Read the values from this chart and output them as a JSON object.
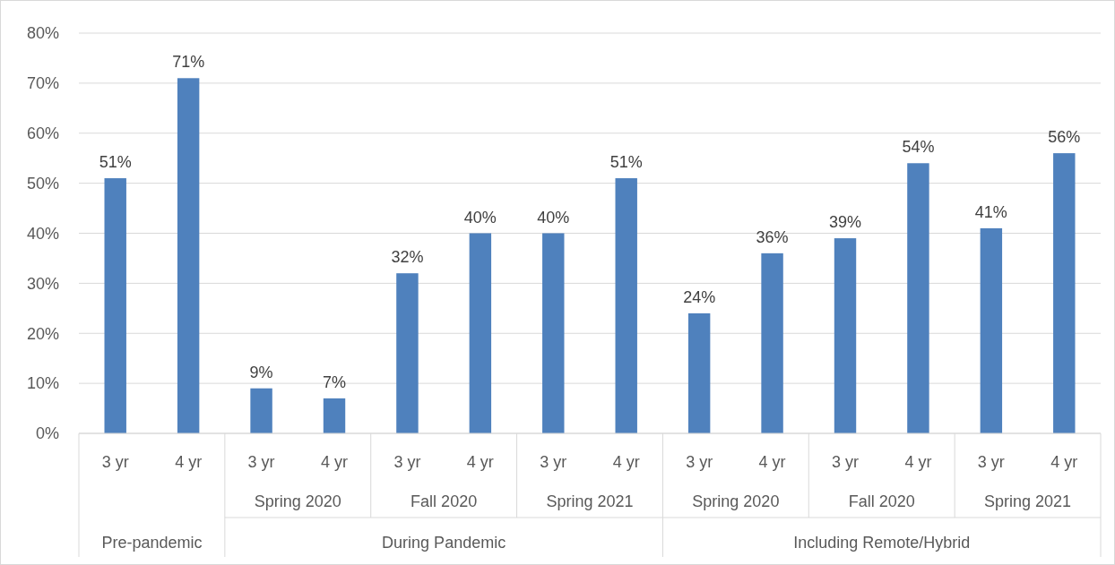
{
  "chart_data": {
    "type": "bar",
    "categories": [
      "3 yr",
      "4 yr",
      "3 yr",
      "4 yr",
      "3 yr",
      "4 yr",
      "3 yr",
      "4 yr",
      "3 yr",
      "4 yr",
      "3 yr",
      "4 yr",
      "3 yr",
      "4 yr"
    ],
    "values": [
      51,
      71,
      9,
      7,
      32,
      40,
      40,
      51,
      24,
      36,
      39,
      54,
      41,
      56
    ],
    "color": "#4f81bd",
    "ylim": [
      0,
      80
    ],
    "yticks": [
      {
        "value": 0,
        "label": "0%"
      },
      {
        "value": 10,
        "label": "10%"
      },
      {
        "value": 20,
        "label": "20%"
      },
      {
        "value": 30,
        "label": "30%"
      },
      {
        "value": 40,
        "label": "40%"
      },
      {
        "value": 50,
        "label": "50%"
      },
      {
        "value": 60,
        "label": "60%"
      },
      {
        "value": 70,
        "label": "70%"
      },
      {
        "value": 80,
        "label": "80%"
      }
    ],
    "grid": "y",
    "value_labels": [
      "51%",
      "71%",
      "9%",
      "7%",
      "32%",
      "40%",
      "40%",
      "51%",
      "24%",
      "36%",
      "39%",
      "54%",
      "41%",
      "56%"
    ],
    "annotations": [
      "Spring 2020",
      "Fall 2020",
      "Spring 2021",
      "Spring 2020",
      "Fall 2020",
      "Spring 2021",
      "Pre-pandemic",
      "During Pandemic",
      "Including Remote/Hybrid"
    ]
  }
}
